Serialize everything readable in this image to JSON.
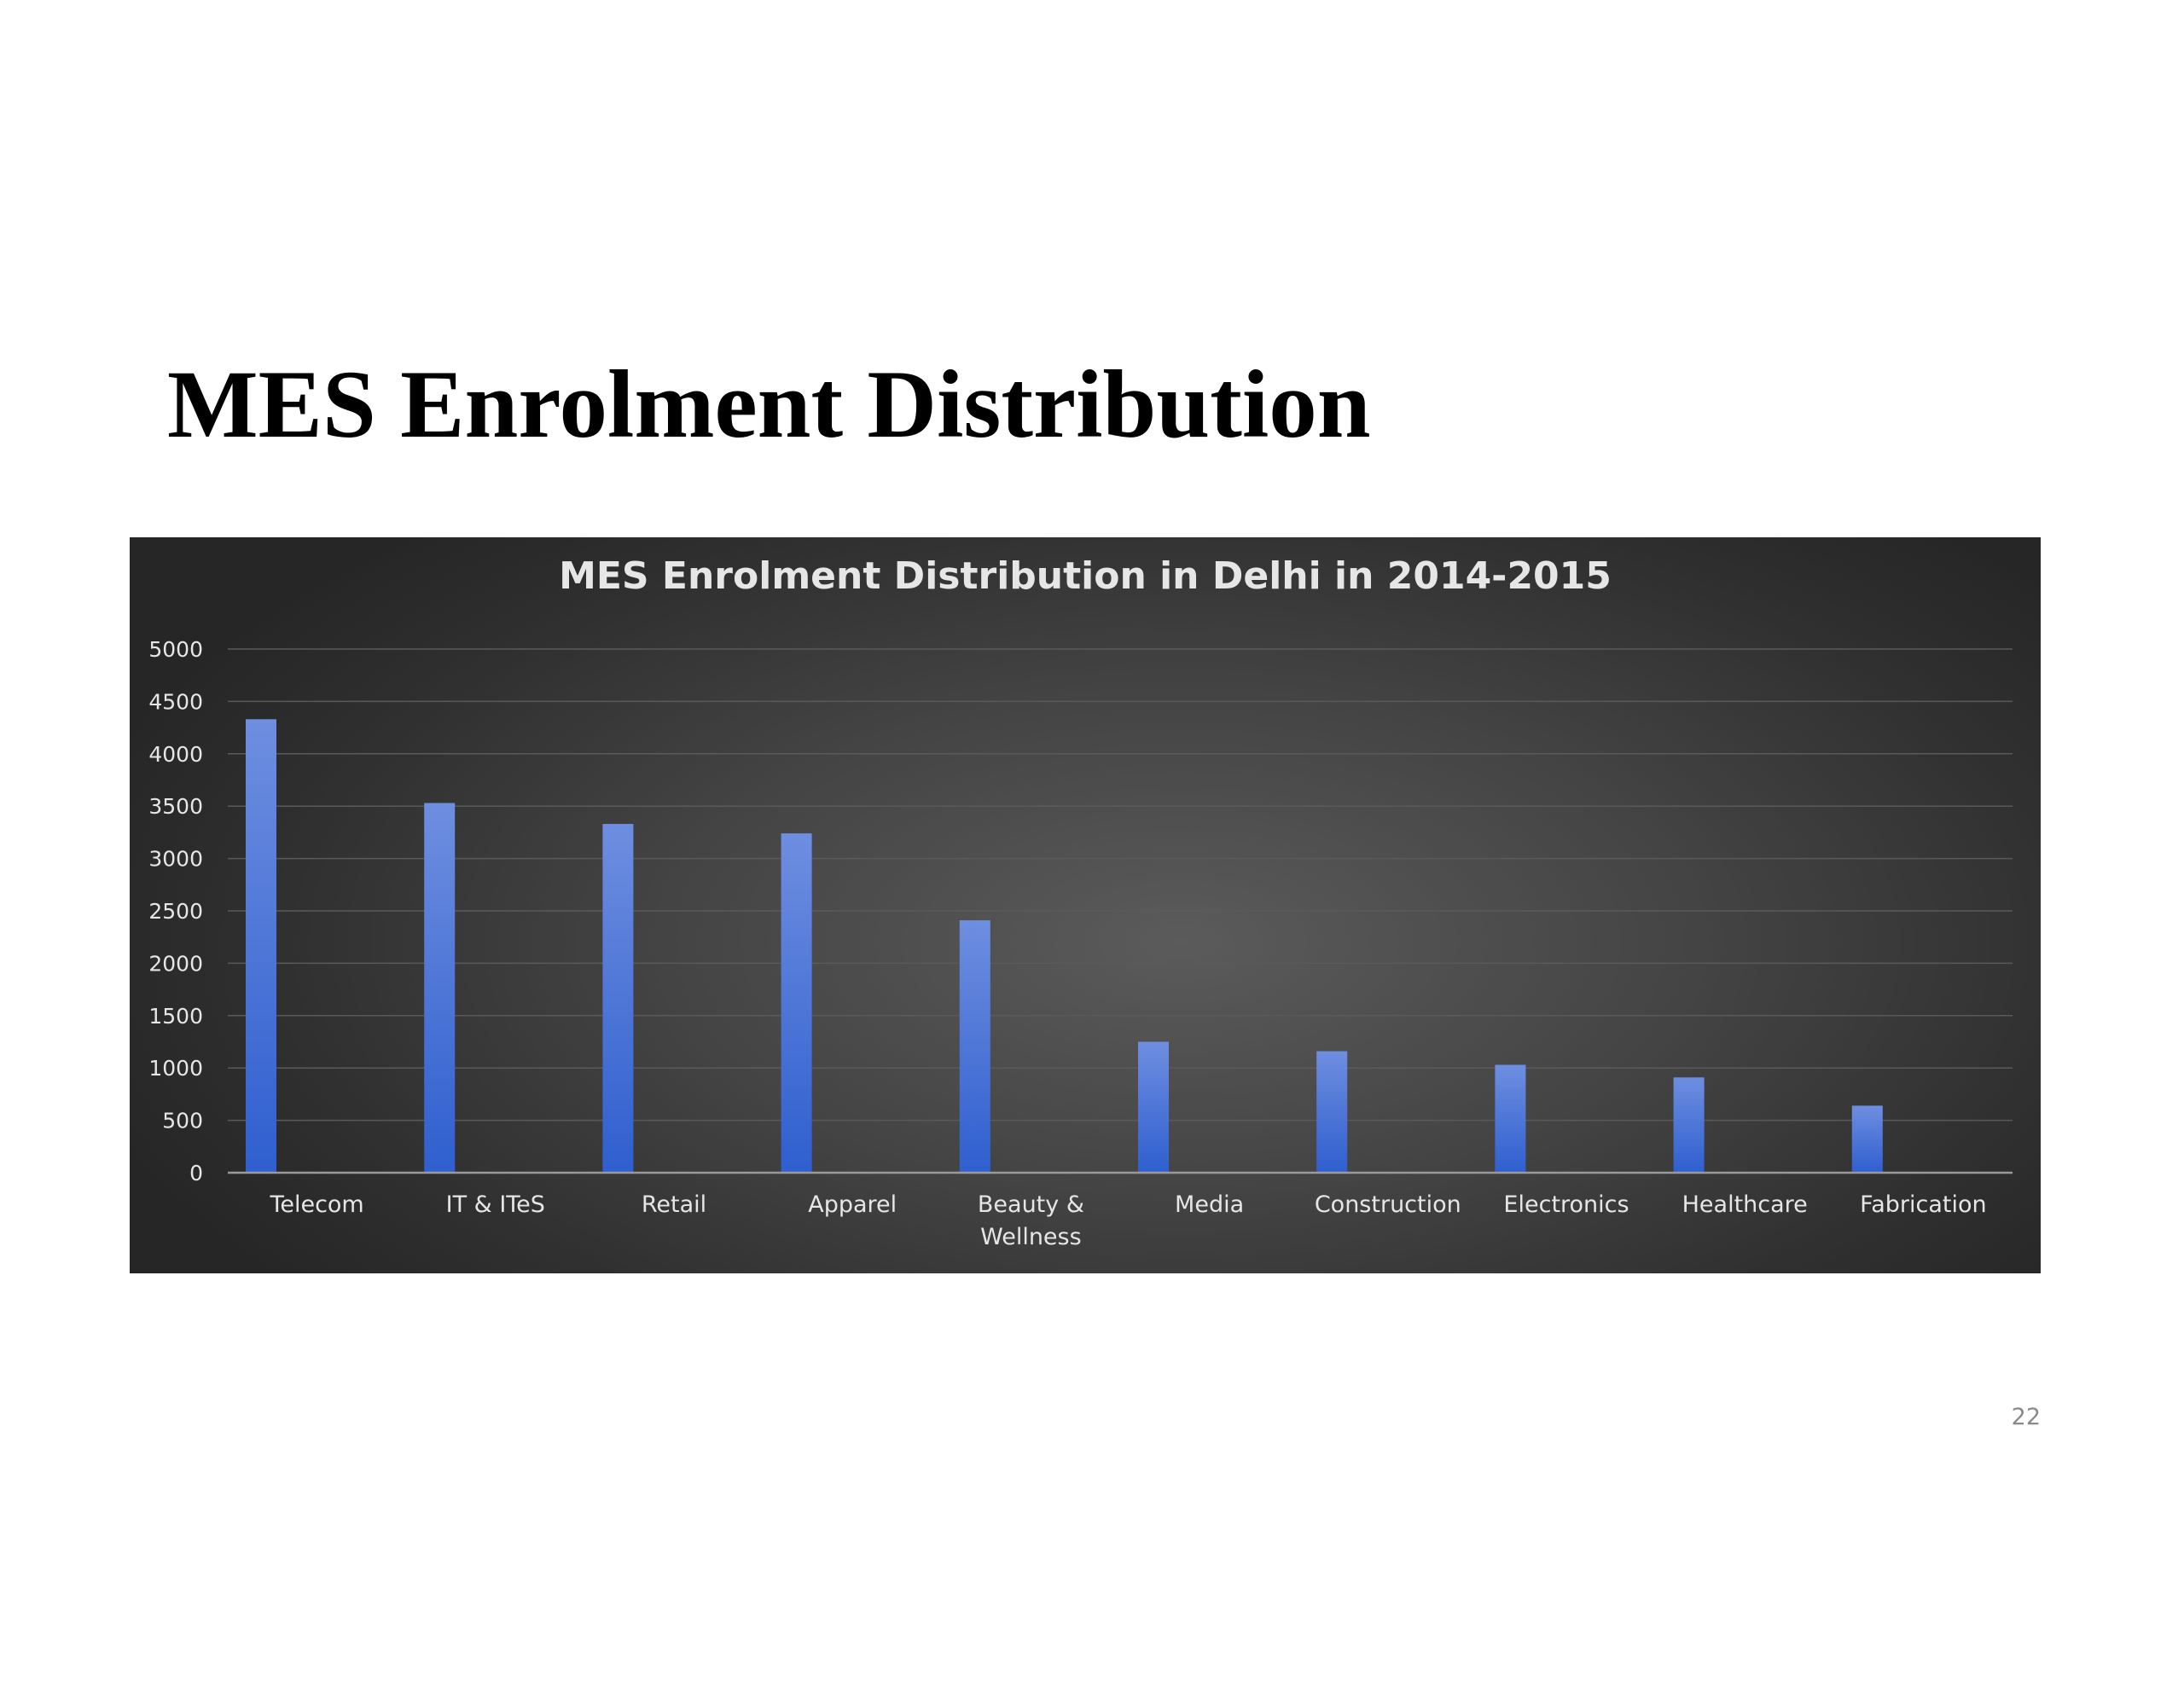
{
  "slide": {
    "title": "MES Enrolment Distribution",
    "page_number": "22"
  },
  "chart_data": {
    "type": "bar",
    "title": "MES Enrolment Distribution in Delhi in 2014-2015",
    "xlabel": "",
    "ylabel": "",
    "categories": [
      [
        "Telecom"
      ],
      [
        "IT & ITeS"
      ],
      [
        "Retail"
      ],
      [
        "Apparel"
      ],
      [
        "Beauty &",
        "Wellness"
      ],
      [
        "Media"
      ],
      [
        "Construction"
      ],
      [
        "Electronics"
      ],
      [
        "Healthcare"
      ],
      [
        "Fabrication"
      ]
    ],
    "values": [
      4330,
      3530,
      3330,
      3240,
      2410,
      1250,
      1160,
      1030,
      910,
      640
    ],
    "ylim": [
      0,
      5000
    ],
    "yticks": [
      0,
      500,
      1000,
      1500,
      2000,
      2500,
      3000,
      3500,
      4000,
      4500,
      5000
    ],
    "grid": true,
    "legend": "none",
    "colors": {
      "bar_top": "#6e8ee0",
      "bar_bottom": "#2f5fcf",
      "background": "#3f3f3f",
      "text": "#e6e6e6",
      "gridline": "#5a5a5a",
      "axis": "#9a9a9a"
    }
  }
}
